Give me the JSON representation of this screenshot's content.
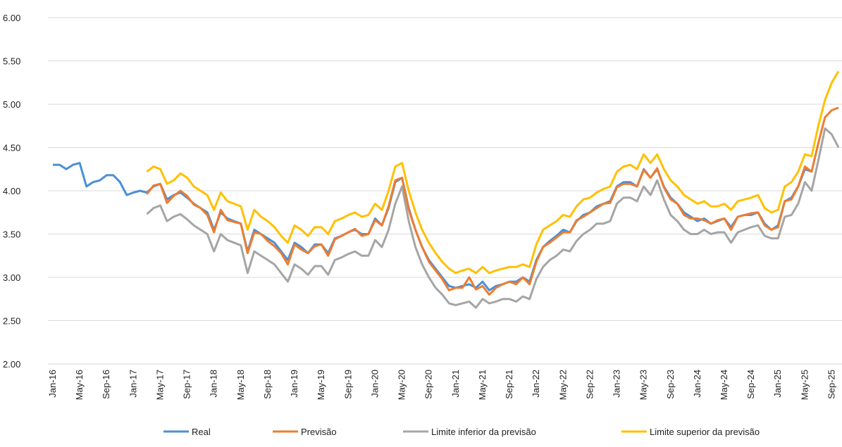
{
  "chart_data": {
    "type": "line",
    "categories": [
      "Jan-16",
      null,
      null,
      null,
      "May-16",
      null,
      null,
      null,
      "Sep-16",
      null,
      null,
      null,
      "Jan-17",
      null,
      null,
      null,
      "May-17",
      null,
      null,
      null,
      "Sep-17",
      null,
      null,
      null,
      "Jan-18",
      null,
      null,
      null,
      "May-18",
      null,
      null,
      null,
      "Sep-18",
      null,
      null,
      null,
      "Jan-19",
      null,
      null,
      null,
      "May-19",
      null,
      null,
      null,
      "Sep-19",
      null,
      null,
      null,
      "Jan-20",
      null,
      null,
      null,
      "May-20",
      null,
      null,
      null,
      "Sep-20",
      null,
      null,
      null,
      "Jan-21",
      null,
      null,
      null,
      "May-21",
      null,
      null,
      null,
      "Sep-21",
      null,
      null,
      null,
      "Jan-22",
      null,
      null,
      null,
      "May-22",
      null,
      null,
      null,
      "Sep-22",
      null,
      null,
      null,
      "Jan-23",
      null,
      null,
      null,
      "May-23",
      null,
      null,
      null,
      "Sep-23",
      null,
      null,
      null,
      "Jan-24",
      null,
      null,
      null,
      "May-24",
      null,
      null,
      null,
      "Sep-24",
      null,
      null,
      null,
      "Jan-25",
      null,
      null,
      null,
      "May-25",
      null,
      null,
      null,
      "Sep-25",
      null
    ],
    "series": [
      {
        "name": "Real",
        "color": "#4a8fd6",
        "values": [
          4.3,
          4.3,
          4.25,
          4.3,
          4.32,
          4.05,
          4.1,
          4.12,
          4.18,
          4.18,
          4.1,
          3.95,
          3.98,
          4.0,
          3.98,
          4.05,
          4.08,
          3.9,
          3.95,
          3.98,
          3.92,
          3.85,
          3.8,
          3.75,
          3.55,
          3.75,
          3.68,
          3.65,
          3.62,
          3.3,
          3.55,
          3.5,
          3.45,
          3.4,
          3.3,
          3.2,
          3.4,
          3.35,
          3.28,
          3.38,
          3.38,
          3.28,
          3.45,
          3.48,
          3.52,
          3.55,
          3.5,
          3.5,
          3.68,
          3.6,
          3.8,
          4.1,
          4.15,
          3.8,
          3.55,
          3.35,
          3.2,
          3.1,
          3.0,
          2.9,
          2.88,
          2.9,
          2.92,
          2.88,
          2.95,
          2.85,
          2.9,
          2.92,
          2.95,
          2.95,
          3.0,
          2.95,
          3.2,
          3.35,
          3.42,
          3.48,
          3.55,
          3.52,
          3.65,
          3.72,
          3.75,
          3.82,
          3.85,
          3.88,
          4.05,
          4.1,
          4.1,
          4.05,
          4.25,
          4.15,
          4.25,
          4.05,
          3.92,
          3.85,
          3.75,
          3.7,
          3.65,
          3.68,
          3.62,
          3.65,
          3.68,
          3.58,
          3.7,
          3.72,
          3.72,
          3.75,
          3.62,
          3.55,
          3.6,
          3.88,
          3.92,
          4.05,
          4.25,
          4.22,
          null,
          null,
          null,
          null
        ]
      },
      {
        "name": "Previsão",
        "color": "#ed7d31",
        "values": [
          null,
          null,
          null,
          null,
          null,
          null,
          null,
          null,
          null,
          null,
          null,
          null,
          null,
          null,
          3.96,
          4.06,
          4.08,
          3.86,
          3.94,
          4.0,
          3.94,
          3.84,
          3.8,
          3.72,
          3.52,
          3.78,
          3.66,
          3.64,
          3.62,
          3.28,
          3.52,
          3.5,
          3.42,
          3.36,
          3.28,
          3.15,
          3.38,
          3.32,
          3.28,
          3.36,
          3.38,
          3.25,
          3.44,
          3.48,
          3.52,
          3.56,
          3.48,
          3.5,
          3.66,
          3.6,
          3.82,
          4.12,
          4.15,
          3.78,
          3.55,
          3.35,
          3.18,
          3.08,
          2.98,
          2.85,
          2.88,
          2.88,
          3.0,
          2.86,
          2.9,
          2.8,
          2.88,
          2.92,
          2.95,
          2.92,
          3.0,
          2.92,
          3.18,
          3.35,
          3.4,
          3.46,
          3.52,
          3.52,
          3.66,
          3.7,
          3.75,
          3.8,
          3.85,
          3.86,
          4.04,
          4.08,
          4.08,
          4.05,
          4.24,
          4.15,
          4.26,
          4.04,
          3.9,
          3.85,
          3.72,
          3.68,
          3.68,
          3.66,
          3.62,
          3.66,
          3.68,
          3.55,
          3.7,
          3.72,
          3.74,
          3.75,
          3.6,
          3.55,
          3.58,
          3.88,
          3.9,
          4.05,
          4.28,
          4.22,
          4.55,
          4.85,
          4.93,
          4.96
        ]
      },
      {
        "name": "Limite inferior da previsão",
        "color": "#a5a5a5",
        "values": [
          null,
          null,
          null,
          null,
          null,
          null,
          null,
          null,
          null,
          null,
          null,
          null,
          null,
          null,
          3.73,
          3.8,
          3.83,
          3.65,
          3.7,
          3.73,
          3.67,
          3.6,
          3.55,
          3.5,
          3.3,
          3.5,
          3.43,
          3.4,
          3.37,
          3.05,
          3.3,
          3.25,
          3.2,
          3.15,
          3.05,
          2.95,
          3.15,
          3.1,
          3.03,
          3.13,
          3.13,
          3.03,
          3.2,
          3.23,
          3.27,
          3.3,
          3.25,
          3.25,
          3.43,
          3.35,
          3.55,
          3.85,
          4.05,
          3.65,
          3.35,
          3.15,
          3.0,
          2.88,
          2.8,
          2.7,
          2.68,
          2.7,
          2.72,
          2.65,
          2.75,
          2.7,
          2.72,
          2.75,
          2.75,
          2.72,
          2.78,
          2.75,
          2.98,
          3.12,
          3.2,
          3.25,
          3.32,
          3.3,
          3.42,
          3.5,
          3.55,
          3.62,
          3.62,
          3.65,
          3.85,
          3.92,
          3.92,
          3.88,
          4.05,
          3.95,
          4.12,
          3.9,
          3.72,
          3.65,
          3.55,
          3.5,
          3.5,
          3.55,
          3.5,
          3.52,
          3.52,
          3.4,
          3.52,
          3.55,
          3.58,
          3.6,
          3.48,
          3.45,
          3.45,
          3.7,
          3.72,
          3.85,
          4.1,
          4.0,
          4.35,
          4.72,
          4.65,
          4.5
        ]
      },
      {
        "name": "Limite superior da previsão",
        "color": "#ffc000",
        "values": [
          null,
          null,
          null,
          null,
          null,
          null,
          null,
          null,
          null,
          null,
          null,
          null,
          null,
          null,
          4.22,
          4.28,
          4.25,
          4.08,
          4.12,
          4.2,
          4.15,
          4.05,
          4.0,
          3.95,
          3.78,
          3.98,
          3.88,
          3.85,
          3.82,
          3.55,
          3.78,
          3.7,
          3.65,
          3.58,
          3.48,
          3.4,
          3.6,
          3.55,
          3.48,
          3.58,
          3.58,
          3.5,
          3.65,
          3.68,
          3.72,
          3.75,
          3.7,
          3.72,
          3.85,
          3.78,
          4.0,
          4.28,
          4.32,
          4.0,
          3.75,
          3.55,
          3.4,
          3.28,
          3.18,
          3.1,
          3.05,
          3.08,
          3.1,
          3.05,
          3.12,
          3.05,
          3.08,
          3.1,
          3.12,
          3.12,
          3.15,
          3.12,
          3.38,
          3.55,
          3.6,
          3.65,
          3.72,
          3.7,
          3.82,
          3.9,
          3.92,
          3.98,
          4.02,
          4.05,
          4.22,
          4.28,
          4.3,
          4.25,
          4.42,
          4.32,
          4.42,
          4.25,
          4.12,
          4.05,
          3.95,
          3.9,
          3.85,
          3.88,
          3.82,
          3.82,
          3.85,
          3.78,
          3.88,
          3.9,
          3.92,
          3.95,
          3.8,
          3.75,
          3.78,
          4.05,
          4.1,
          4.22,
          4.42,
          4.4,
          4.75,
          5.05,
          5.25,
          5.38
        ]
      }
    ],
    "ylim": [
      2,
      6
    ],
    "yticks": [
      {
        "value": 2,
        "label": "2.00"
      },
      {
        "value": 2.5,
        "label": "2.50"
      },
      {
        "value": 3,
        "label": "3.00"
      },
      {
        "value": 3.5,
        "label": "3.50"
      },
      {
        "value": 4,
        "label": "4.00"
      },
      {
        "value": 4.5,
        "label": "4.50"
      },
      {
        "value": 5,
        "label": "5.00"
      },
      {
        "value": 5.5,
        "label": "5.50"
      },
      {
        "value": 6,
        "label": "6.00"
      }
    ],
    "grid": true
  }
}
